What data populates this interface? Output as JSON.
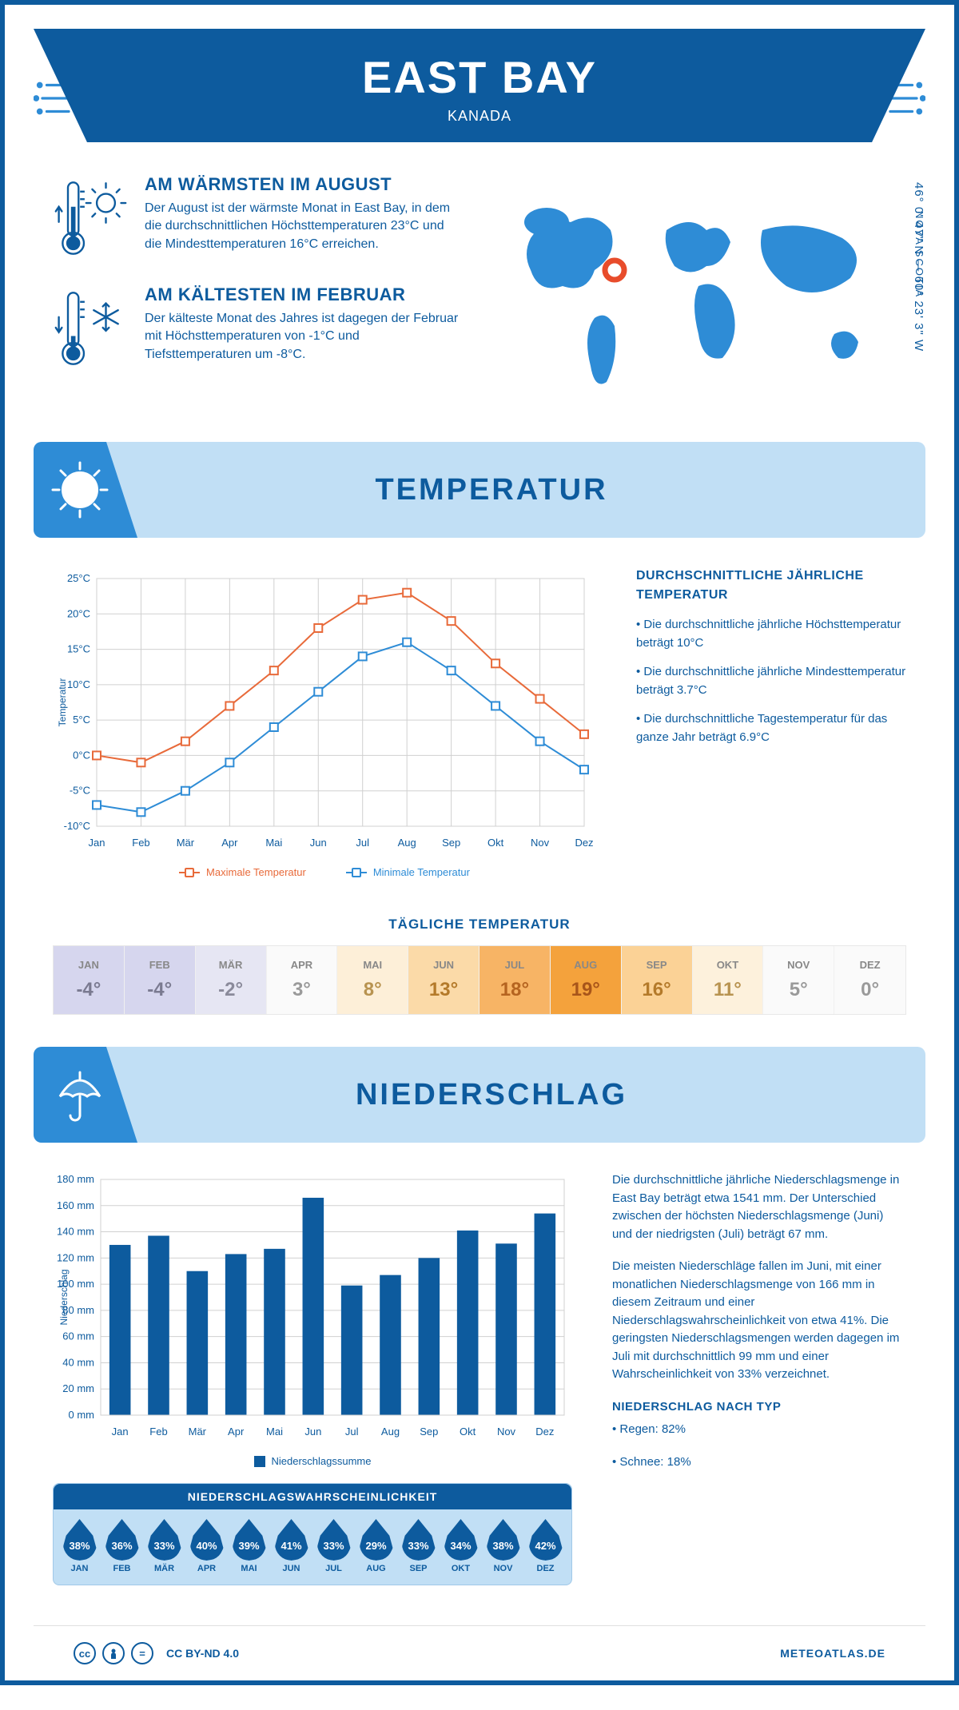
{
  "header": {
    "city": "EAST BAY",
    "country": "KANADA"
  },
  "coords": "46° 0' 47\" N — 60° 23' 3\" W",
  "region": "NOVA SCOTIA",
  "warmest": {
    "title": "AM WÄRMSTEN IM AUGUST",
    "text": "Der August ist der wärmste Monat in East Bay, in dem die durchschnittlichen Höchsttemperaturen 23°C und die Mindesttemperaturen 16°C erreichen."
  },
  "coldest": {
    "title": "AM KÄLTESTEN IM FEBRUAR",
    "text": "Der kälteste Monat des Jahres ist dagegen der Februar mit Höchsttemperaturen von -1°C und Tiefsttemperaturen um -8°C."
  },
  "temp_section": {
    "banner": "TEMPERATUR",
    "info_title": "DURCHSCHNITTLICHE JÄHRLICHE TEMPERATUR",
    "info_points": [
      "• Die durchschnittliche jährliche Höchsttemperatur beträgt 10°C",
      "• Die durchschnittliche jährliche Mindesttemperatur beträgt 3.7°C",
      "• Die durchschnittliche Tagestemperatur für das ganze Jahr beträgt 6.9°C"
    ],
    "chart": {
      "type": "line",
      "months": [
        "Jan",
        "Feb",
        "Mär",
        "Apr",
        "Mai",
        "Jun",
        "Jul",
        "Aug",
        "Sep",
        "Okt",
        "Nov",
        "Dez"
      ],
      "max_series": [
        0,
        -1,
        2,
        7,
        12,
        18,
        22,
        23,
        19,
        13,
        8,
        3
      ],
      "min_series": [
        -7,
        -8,
        -5,
        -1,
        4,
        9,
        14,
        16,
        12,
        7,
        2,
        -2
      ],
      "ylim": [
        -10,
        25
      ],
      "ytick_step": 5,
      "max_color": "#e86a3a",
      "min_color": "#2e8cd6",
      "grid_color": "#d0d0d0",
      "bg": "#ffffff",
      "ylabel": "Temperatur",
      "legend_max": "Maximale Temperatur",
      "legend_min": "Minimale Temperatur",
      "line_width": 2,
      "marker_size": 5
    },
    "daily_title": "TÄGLICHE TEMPERATUR",
    "daily": {
      "months": [
        "JAN",
        "FEB",
        "MÄR",
        "APR",
        "MAI",
        "JUN",
        "JUL",
        "AUG",
        "SEP",
        "OKT",
        "NOV",
        "DEZ"
      ],
      "values": [
        "-4°",
        "-4°",
        "-2°",
        "3°",
        "8°",
        "13°",
        "18°",
        "19°",
        "16°",
        "11°",
        "5°",
        "0°"
      ],
      "bg_colors": [
        "#d6d6ee",
        "#d6d6ee",
        "#e6e6f3",
        "#fafafa",
        "#fdefd8",
        "#fbdaa8",
        "#f7b465",
        "#f4a23c",
        "#fbd296",
        "#fdf1dc",
        "#fafafa",
        "#fafafa"
      ],
      "text_colors": [
        "#7a7a90",
        "#7a7a90",
        "#8a8a9a",
        "#9a9a9a",
        "#b89350",
        "#b47a2a",
        "#b56420",
        "#a8551a",
        "#b47a2a",
        "#b89350",
        "#9a9a9a",
        "#9a9a9a"
      ]
    }
  },
  "precip_section": {
    "banner": "NIEDERSCHLAG",
    "chart": {
      "type": "bar",
      "months": [
        "Jan",
        "Feb",
        "Mär",
        "Apr",
        "Mai",
        "Jun",
        "Jul",
        "Aug",
        "Sep",
        "Okt",
        "Nov",
        "Dez"
      ],
      "values": [
        130,
        137,
        110,
        123,
        127,
        166,
        99,
        107,
        120,
        141,
        131,
        154
      ],
      "ylim": [
        0,
        180
      ],
      "ytick_step": 20,
      "bar_color": "#0d5b9e",
      "grid_color": "#d0d0d0",
      "ylabel": "Niederschlag",
      "legend": "Niederschlagssumme",
      "ylabel_suffix": " mm",
      "bar_width": 0.55
    },
    "text1": "Die durchschnittliche jährliche Niederschlagsmenge in East Bay beträgt etwa 1541 mm. Der Unterschied zwischen der höchsten Niederschlagsmenge (Juni) und der niedrigsten (Juli) beträgt 67 mm.",
    "text2": "Die meisten Niederschläge fallen im Juni, mit einer monatlichen Niederschlagsmenge von 166 mm in diesem Zeitraum und einer Niederschlagswahrscheinlichkeit von etwa 41%. Die geringsten Niederschlagsmengen werden dagegen im Juli mit durchschnittlich 99 mm und einer Wahrscheinlichkeit von 33% verzeichnet.",
    "type_title": "NIEDERSCHLAG NACH TYP",
    "type_items": [
      "• Regen: 82%",
      "• Schnee: 18%"
    ],
    "prob_title": "NIEDERSCHLAGSWAHRSCHEINLICHKEIT",
    "prob": {
      "months": [
        "JAN",
        "FEB",
        "MÄR",
        "APR",
        "MAI",
        "JUN",
        "JUL",
        "AUG",
        "SEP",
        "OKT",
        "NOV",
        "DEZ"
      ],
      "values": [
        "38%",
        "36%",
        "33%",
        "40%",
        "39%",
        "41%",
        "33%",
        "29%",
        "33%",
        "34%",
        "38%",
        "42%"
      ]
    }
  },
  "footer": {
    "license": "CC BY-ND 4.0",
    "site": "METEOATLAS.DE"
  },
  "colors": {
    "primary": "#0d5b9e",
    "light": "#c1dff5",
    "accent": "#2e8cd6",
    "marker": "#e84c2b"
  }
}
